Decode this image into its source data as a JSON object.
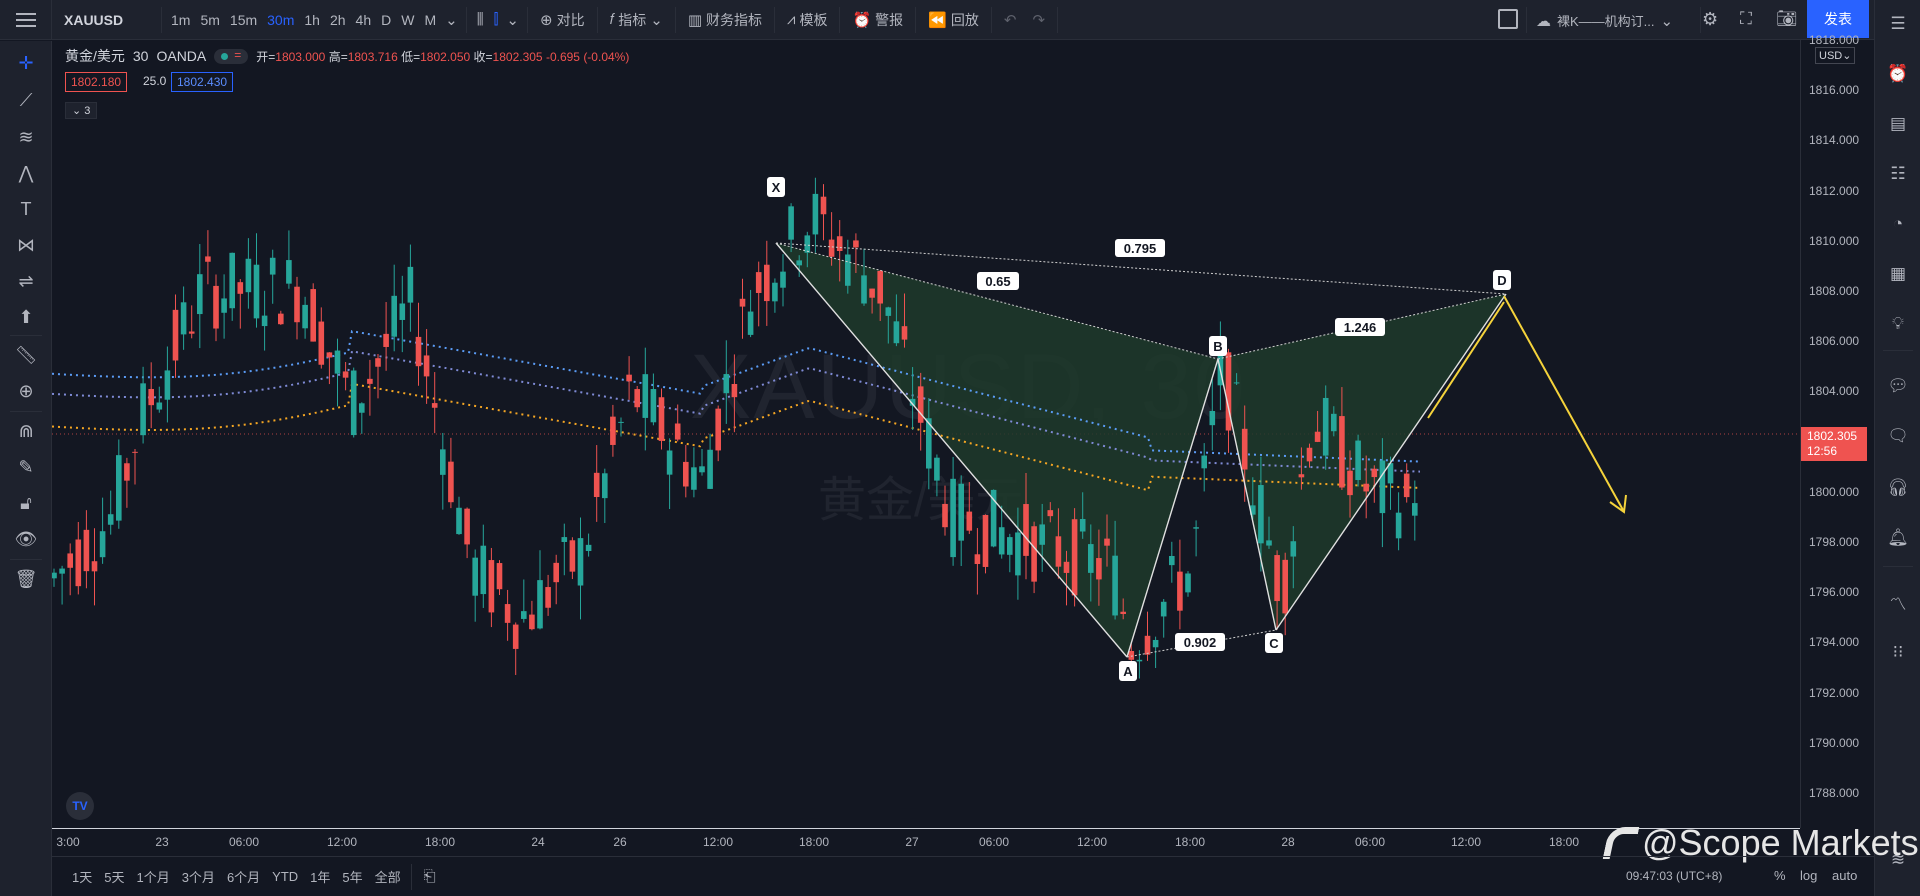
{
  "toolbar": {
    "symbol": "XAUUSD",
    "timeframes": [
      "1m",
      "5m",
      "15m",
      "30m",
      "1h",
      "2h",
      "4h",
      "D",
      "W",
      "M"
    ],
    "active_timeframe": "30m",
    "compare_label": "对比",
    "indicators_label": "指标",
    "financials_label": "财务指标",
    "templates_label": "模板",
    "alert_label": "警报",
    "replay_label": "回放",
    "layout_name": "裸K——机构订...",
    "publish_label": "发表"
  },
  "legend": {
    "symbol_name": "黄金/美元",
    "interval": "30",
    "broker": "OANDA",
    "open_label": "开=",
    "open": "1803.000",
    "high_label": "高=",
    "high": "1803.716",
    "low_label": "低=",
    "low": "1802.050",
    "close_label": "收=",
    "close": "1802.305",
    "change": "-0.695 (-0.04%)",
    "bid": "1802.180",
    "spread": "25.0",
    "ask": "1802.430",
    "collapsed_count": "3"
  },
  "watermark": {
    "symbol": "XAUUSD, 30",
    "name": "黄金/美元"
  },
  "price_axis": {
    "currency": "USD",
    "last_price": "1802.305",
    "countdown": "12:56",
    "ticks": [
      "1818.000",
      "1816.000",
      "1814.000",
      "1812.000",
      "1810.000",
      "1808.000",
      "1806.000",
      "1804.000",
      "1802.000",
      "1800.000",
      "1798.000",
      "1796.000",
      "1794.000",
      "1792.000",
      "1790.000",
      "1788.000"
    ]
  },
  "time_axis": {
    "labels": [
      "3:00",
      "23",
      "06:00",
      "12:00",
      "18:00",
      "24",
      "26",
      "12:00",
      "18:00",
      "27",
      "06:00",
      "12:00",
      "18:00",
      "28",
      "06:00",
      "12:00",
      "18:00"
    ]
  },
  "bottom": {
    "ranges": [
      "1天",
      "5天",
      "1个月",
      "3个月",
      "6个月",
      "YTD",
      "1年",
      "5年",
      "全部"
    ],
    "time": "09:47:03 (UTC+8)",
    "percent": "%",
    "log": "log",
    "auto": "auto"
  },
  "pattern": {
    "points": [
      {
        "label": "X",
        "price": 1811.6
      },
      {
        "label": "A",
        "price": 1793.6
      },
      {
        "label": "B",
        "price": 1805.3
      },
      {
        "label": "C",
        "price": 1794.7
      },
      {
        "label": "D",
        "price": 1807.8
      }
    ],
    "ratios": {
      "XB": "0.65",
      "XD": "0.795",
      "AC": "0.902",
      "BD": "1.246"
    }
  },
  "brand_watermark": "@Scope Markets",
  "colors": {
    "up": "#26a69a",
    "down": "#ef5350",
    "accent": "#2962ff",
    "pattern_fill": "#1f3a2a",
    "projection": "#f5d33b"
  }
}
